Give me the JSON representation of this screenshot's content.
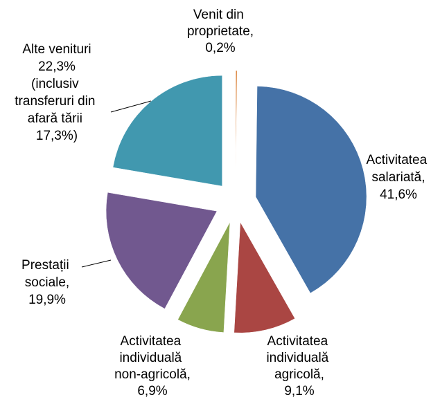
{
  "chart_data": {
    "type": "pie",
    "categories": [
      "Venit din proprietate,",
      "Activitatea salariată,",
      "Activitatea individuală agricolă,",
      "Activitatea individuală non-agricolă,",
      "Prestații sociale,",
      "Alte venituri"
    ],
    "values": [
      0.2,
      41.6,
      9.1,
      6.9,
      19.9,
      22.3
    ],
    "value_labels": [
      "0,2%",
      "41,6%",
      "9,1%",
      "6,9%",
      "19,9%",
      "22,3%"
    ],
    "colors": [
      "#db843d",
      "#4572a7",
      "#aa4643",
      "#89a54e",
      "#71588f",
      "#4198af"
    ],
    "annotations": [
      "(inclusiv transferuri din afară tării 17,3%)"
    ]
  }
}
